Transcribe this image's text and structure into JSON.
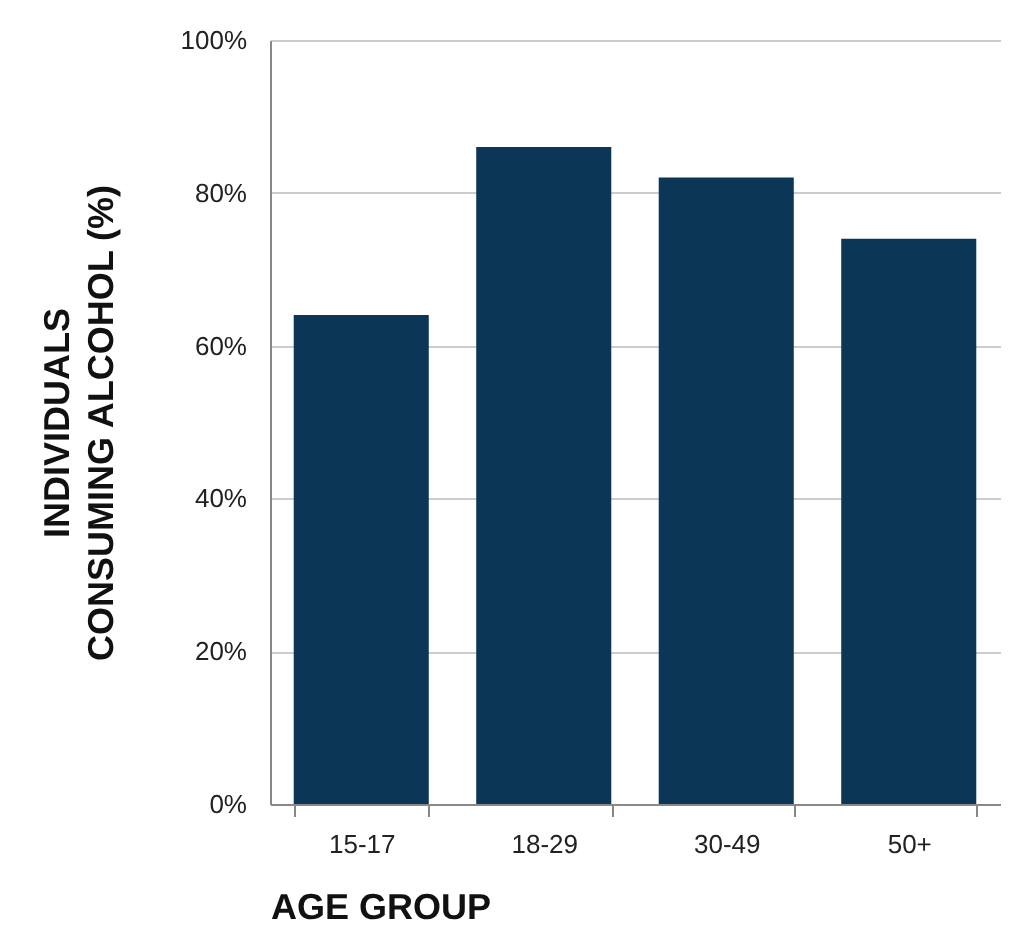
{
  "chart_data": {
    "type": "bar",
    "xlabel": "AGE GROUP",
    "ylabel": "INDIVIDUALS CONSUMING ALCOHOL (%)",
    "categories": [
      "15-17",
      "18-29",
      "30-49",
      "50+"
    ],
    "values": [
      64,
      86,
      82,
      74
    ],
    "color": "#0b3656",
    "ylim": [
      0,
      100
    ],
    "yticks": [
      {
        "value": 0,
        "label": "0%"
      },
      {
        "value": 20,
        "label": "20%"
      },
      {
        "value": 40,
        "label": "40%"
      },
      {
        "value": 60,
        "label": "60%"
      },
      {
        "value": 80,
        "label": "80%"
      },
      {
        "value": 100,
        "label": "100%"
      }
    ],
    "grid": "y"
  }
}
